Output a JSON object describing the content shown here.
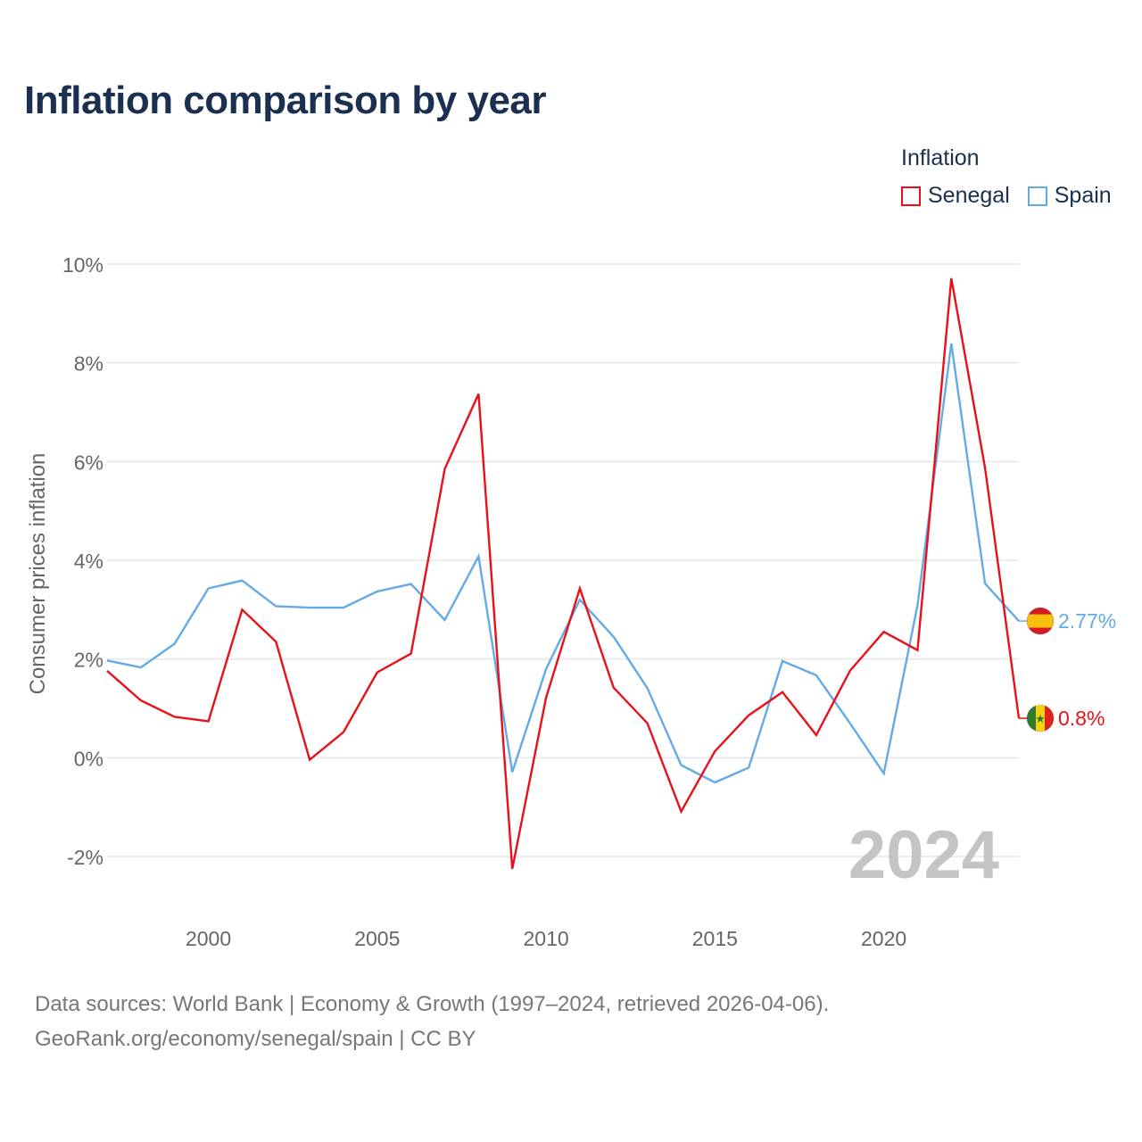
{
  "title": "Inflation comparison by year",
  "legend": {
    "title": "Inflation",
    "items": [
      {
        "name": "Senegal",
        "color": "#e8101a"
      },
      {
        "name": "Spain",
        "color": "#64aae6"
      }
    ]
  },
  "footer": {
    "line1": "Data sources: World Bank | Economy & Growth (1997–2024, retrieved 2026-04-06).",
    "line2": "GeoRank.org/economy/senegal/spain | CC BY"
  },
  "chart_data": {
    "type": "line",
    "title": "Inflation comparison by year",
    "xlabel": "",
    "ylabel": "Consumer prices inflation",
    "year_watermark": "2024",
    "x": [
      1997,
      1998,
      1999,
      2000,
      2001,
      2002,
      2003,
      2004,
      2005,
      2006,
      2007,
      2008,
      2009,
      2010,
      2011,
      2012,
      2013,
      2014,
      2015,
      2016,
      2017,
      2018,
      2019,
      2020,
      2021,
      2022,
      2023,
      2024
    ],
    "xlim": [
      1997,
      2024
    ],
    "ylim": [
      -2.5,
      10
    ],
    "x_ticks": [
      2000,
      2005,
      2010,
      2015,
      2020
    ],
    "x_tick_labels": [
      "2000",
      "2005",
      "2010",
      "2015",
      "2020"
    ],
    "y_ticks": [
      -2,
      0,
      2,
      4,
      6,
      8,
      10
    ],
    "y_tick_labels": [
      "-2%",
      "0%",
      "2%",
      "4%",
      "6%",
      "8%",
      "10%"
    ],
    "grid": true,
    "series": [
      {
        "name": "Senegal",
        "color": "#e8101a",
        "end_label": "0.8%",
        "flag": "senegal-flag",
        "values": [
          1.76,
          1.16,
          0.83,
          0.74,
          3.0,
          2.35,
          -0.04,
          0.52,
          1.73,
          2.11,
          5.85,
          7.37,
          -2.25,
          1.22,
          3.43,
          1.42,
          0.7,
          -1.09,
          0.13,
          0.86,
          1.33,
          0.46,
          1.76,
          2.55,
          2.18,
          9.71,
          5.87,
          0.8
        ]
      },
      {
        "name": "Spain",
        "color": "#64aae6",
        "end_label": "2.77%",
        "flag": "spain-flag",
        "values": [
          1.97,
          1.83,
          2.31,
          3.43,
          3.59,
          3.07,
          3.04,
          3.04,
          3.37,
          3.52,
          2.79,
          4.08,
          -0.29,
          1.8,
          3.2,
          2.45,
          1.41,
          -0.15,
          -0.5,
          -0.2,
          1.96,
          1.67,
          0.7,
          -0.32,
          3.09,
          8.39,
          3.53,
          2.77
        ]
      }
    ]
  }
}
